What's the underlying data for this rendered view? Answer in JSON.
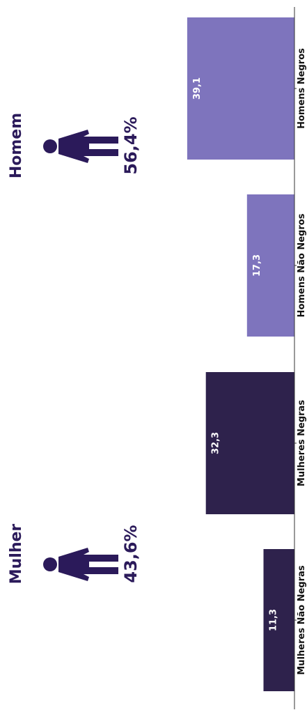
{
  "chart_data": {
    "type": "bar",
    "orientation": "horizontal-rotated",
    "categories": [
      "Mulheres Não Negras",
      "Mulheres Negras",
      "Homens Não Negros",
      "Homens Negros"
    ],
    "values": [
      11.3,
      32.3,
      17.3,
      39.1
    ],
    "value_labels": [
      "11,3",
      "32,3",
      "17,3",
      "39,1"
    ],
    "bar_colors": [
      "#2e224c",
      "#2e224c",
      "#7e74bd",
      "#7e74bd"
    ],
    "xlim": [
      0,
      40
    ],
    "grid": false,
    "legend": "none"
  },
  "gender_panels": [
    {
      "label": "Mulher",
      "percent": "43,6%",
      "icon": "person-icon"
    },
    {
      "label": "Homem",
      "percent": "56,4%",
      "icon": "person-icon"
    }
  ],
  "colors": {
    "dark": "#2e224c",
    "light": "#7e74bd",
    "text_dark": "#2b1a5a",
    "axis": "#333333"
  }
}
